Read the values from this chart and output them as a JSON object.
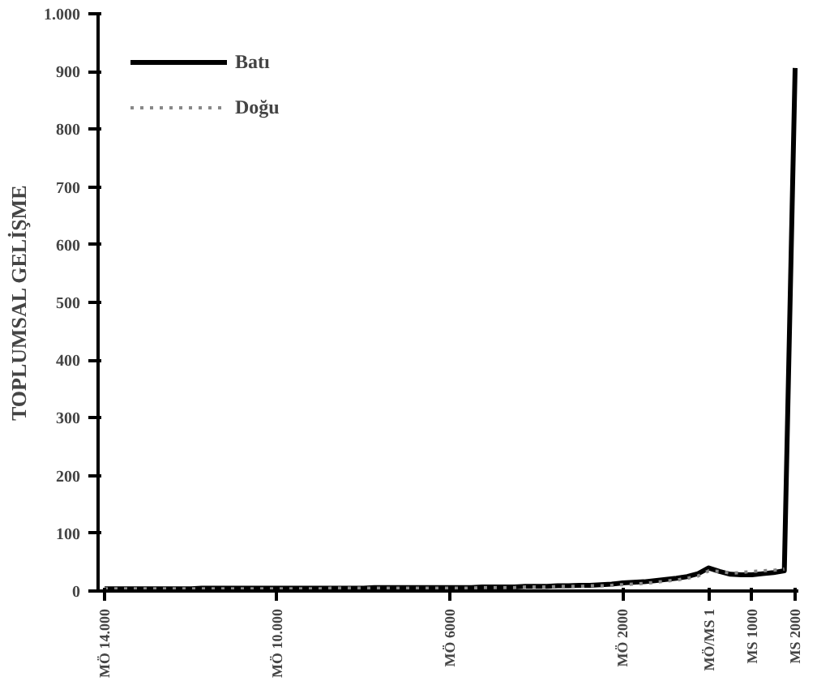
{
  "chart_data": {
    "type": "line",
    "ylabel": "TOPLUMSAL GELİŞME",
    "ylim": [
      0,
      1000
    ],
    "categories": [
      "MÖ 14.000",
      null,
      null,
      null,
      null,
      null,
      null,
      null,
      null,
      null,
      null,
      null,
      null,
      null,
      null,
      null,
      "MÖ 10.000",
      null,
      null,
      null,
      null,
      null,
      null,
      null,
      null,
      null,
      null,
      null,
      null,
      null,
      null,
      null,
      "MÖ 6000",
      null,
      null,
      null,
      null,
      null,
      null,
      null,
      null,
      null,
      null,
      null,
      null,
      null,
      null,
      null,
      "MÖ 2000",
      null,
      null,
      null,
      null,
      null,
      null,
      null,
      "MÖ/MS 1",
      null,
      null,
      null,
      "MS 1000",
      null,
      null,
      null,
      "MS 2000"
    ],
    "yticks": [
      0,
      100,
      200,
      300,
      400,
      500,
      600,
      700,
      800,
      900,
      {
        "value": 1000,
        "label": "1.000"
      }
    ],
    "grid": false,
    "legend": "top left",
    "series": [
      {
        "name": "Batı",
        "color": "#000000",
        "line_style": "solid",
        "values": [
          4,
          4,
          4,
          4,
          4,
          4,
          4,
          4,
          4,
          5,
          5,
          5,
          5,
          5,
          5,
          5,
          5,
          5,
          5,
          5,
          5,
          5,
          5,
          5,
          5,
          6,
          6,
          6,
          6,
          6,
          6,
          6,
          6,
          6,
          6,
          7,
          7,
          7,
          7,
          8,
          8,
          8,
          9,
          9,
          10,
          10,
          11,
          12,
          14,
          15,
          16,
          18,
          20,
          22,
          25,
          30,
          40,
          34,
          29,
          28,
          28,
          30,
          32,
          35,
          906
        ]
      },
      {
        "name": "Doğu",
        "color": "#888888",
        "line_style": "dotted",
        "values": [
          4,
          4,
          4,
          4,
          4,
          4,
          4,
          4,
          4,
          4,
          4,
          4,
          4,
          4,
          4,
          4,
          4,
          4,
          4,
          4,
          4,
          5,
          5,
          5,
          5,
          5,
          5,
          5,
          5,
          5,
          5,
          5,
          5,
          5,
          5,
          6,
          6,
          6,
          6,
          7,
          7,
          7,
          8,
          8,
          8,
          9,
          9,
          10,
          11,
          12,
          13,
          15,
          17,
          19,
          22,
          26,
          35,
          34,
          31,
          32,
          34,
          35,
          36,
          38,
          null
        ]
      }
    ]
  }
}
